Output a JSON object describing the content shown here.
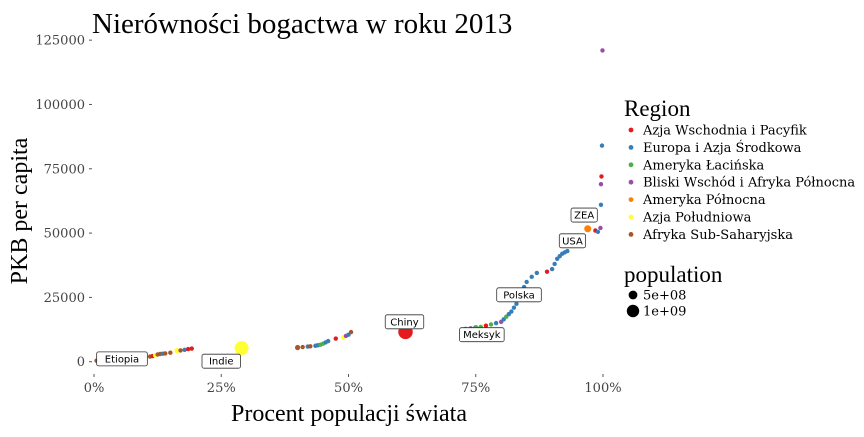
{
  "chart_data": {
    "type": "scatter",
    "title": "Nierówności bogactwa w roku 2013",
    "xlabel": "Procent populacji świata",
    "ylabel": "PKB per capita",
    "xlim": [
      0,
      1
    ],
    "ylim": [
      -4000,
      127000
    ],
    "x_ticks": [
      {
        "value": 0,
        "label": "0%"
      },
      {
        "value": 0.25,
        "label": "25%"
      },
      {
        "value": 0.5,
        "label": "50%"
      },
      {
        "value": 0.75,
        "label": "75%"
      },
      {
        "value": 1,
        "label": "100%"
      }
    ],
    "y_ticks": [
      {
        "value": 0,
        "label": "0"
      },
      {
        "value": 25000,
        "label": "25000"
      },
      {
        "value": 50000,
        "label": "50000"
      },
      {
        "value": 75000,
        "label": "75000"
      },
      {
        "value": 100000,
        "label": "100000"
      },
      {
        "value": 125000,
        "label": "125000"
      }
    ],
    "grid": false,
    "legend": {
      "title": "Region",
      "placement": "right",
      "entries": [
        {
          "name": "Azja Wschodnia i Pacyfik",
          "color": "#e41a1c"
        },
        {
          "name": "Europa i Azja Środkowa",
          "color": "#377eb8"
        },
        {
          "name": "Ameryka Łacińska",
          "color": "#4daf4a"
        },
        {
          "name": "Bliski Wschód i Afryka Północna",
          "color": "#984ea3"
        },
        {
          "name": "Ameryka Północna",
          "color": "#ff7f00"
        },
        {
          "name": "Azja Południowa",
          "color": "#ffff33"
        },
        {
          "name": "Afryka Sub-Saharyjska",
          "color": "#a65628"
        }
      ]
    },
    "size_legend": {
      "title": "population",
      "entries": [
        {
          "label": "5e+08",
          "value": 500000000
        },
        {
          "label": "1e+09",
          "value": 1000000000
        }
      ]
    },
    "points": [
      {
        "x": 0.005,
        "y": 400,
        "region": 6,
        "pop": 20000000
      },
      {
        "x": 0.01,
        "y": 500,
        "region": 6,
        "pop": 25000000
      },
      {
        "x": 0.015,
        "y": 600,
        "region": 6,
        "pop": 30000000
      },
      {
        "x": 0.02,
        "y": 700,
        "region": 6,
        "pop": 20000000
      },
      {
        "x": 0.025,
        "y": 800,
        "region": 6,
        "pop": 25000000
      },
      {
        "x": 0.03,
        "y": 900,
        "region": 6,
        "pop": 30000000
      },
      {
        "x": 0.035,
        "y": 1000,
        "region": 6,
        "pop": 20000000
      },
      {
        "x": 0.04,
        "y": 1050,
        "region": 6,
        "pop": 25000000
      },
      {
        "x": 0.05,
        "y": 1100,
        "region": 6,
        "pop": 90000000
      },
      {
        "x": 0.06,
        "y": 1200,
        "region": 6,
        "pop": 30000000
      },
      {
        "x": 0.07,
        "y": 1300,
        "region": 6,
        "pop": 20000000
      },
      {
        "x": 0.08,
        "y": 1400,
        "region": 6,
        "pop": 30000000
      },
      {
        "x": 0.09,
        "y": 1600,
        "region": 6,
        "pop": 30000000
      },
      {
        "x": 0.1,
        "y": 1800,
        "region": 6,
        "pop": 40000000
      },
      {
        "x": 0.11,
        "y": 2000,
        "region": 6,
        "pop": 30000000
      },
      {
        "x": 0.115,
        "y": 2200,
        "region": 0,
        "pop": 20000000
      },
      {
        "x": 0.12,
        "y": 2500,
        "region": 5,
        "pop": 25000000
      },
      {
        "x": 0.125,
        "y": 2800,
        "region": 6,
        "pop": 40000000
      },
      {
        "x": 0.13,
        "y": 3000,
        "region": 6,
        "pop": 30000000
      },
      {
        "x": 0.135,
        "y": 3100,
        "region": 1,
        "pop": 20000000
      },
      {
        "x": 0.14,
        "y": 3200,
        "region": 6,
        "pop": 30000000
      },
      {
        "x": 0.15,
        "y": 3500,
        "region": 6,
        "pop": 30000000
      },
      {
        "x": 0.163,
        "y": 4300,
        "region": 5,
        "pop": 180000000
      },
      {
        "x": 0.17,
        "y": 4400,
        "region": 6,
        "pop": 30000000
      },
      {
        "x": 0.178,
        "y": 4600,
        "region": 1,
        "pop": 30000000
      },
      {
        "x": 0.185,
        "y": 4900,
        "region": 0,
        "pop": 60000000
      },
      {
        "x": 0.192,
        "y": 5100,
        "region": 0,
        "pop": 40000000
      },
      {
        "x": 0.29,
        "y": 5300,
        "region": 5,
        "pop": 1250000000
      },
      {
        "x": 0.4,
        "y": 5500,
        "region": 6,
        "pop": 180000000
      },
      {
        "x": 0.41,
        "y": 5700,
        "region": 6,
        "pop": 30000000
      },
      {
        "x": 0.42,
        "y": 5900,
        "region": 1,
        "pop": 30000000
      },
      {
        "x": 0.425,
        "y": 6000,
        "region": 6,
        "pop": 30000000
      },
      {
        "x": 0.435,
        "y": 6200,
        "region": 1,
        "pop": 40000000
      },
      {
        "x": 0.44,
        "y": 6400,
        "region": 1,
        "pop": 30000000
      },
      {
        "x": 0.445,
        "y": 6600,
        "region": 2,
        "pop": 30000000
      },
      {
        "x": 0.45,
        "y": 7000,
        "region": 2,
        "pop": 30000000
      },
      {
        "x": 0.455,
        "y": 7500,
        "region": 1,
        "pop": 40000000
      },
      {
        "x": 0.46,
        "y": 8000,
        "region": 1,
        "pop": 30000000
      },
      {
        "x": 0.475,
        "y": 9000,
        "region": 0,
        "pop": 90000000
      },
      {
        "x": 0.49,
        "y": 9500,
        "region": 5,
        "pop": 20000000
      },
      {
        "x": 0.495,
        "y": 10000,
        "region": 3,
        "pop": 30000000
      },
      {
        "x": 0.5,
        "y": 10500,
        "region": 1,
        "pop": 30000000
      },
      {
        "x": 0.505,
        "y": 11500,
        "region": 6,
        "pop": 30000000
      },
      {
        "x": 0.612,
        "y": 11600,
        "region": 0,
        "pop": 1360000000
      },
      {
        "x": 0.725,
        "y": 12500,
        "region": 2,
        "pop": 30000000
      },
      {
        "x": 0.73,
        "y": 12800,
        "region": 2,
        "pop": 40000000
      },
      {
        "x": 0.74,
        "y": 13000,
        "region": 3,
        "pop": 30000000
      },
      {
        "x": 0.75,
        "y": 13200,
        "region": 2,
        "pop": 200000000
      },
      {
        "x": 0.76,
        "y": 13500,
        "region": 2,
        "pop": 30000000
      },
      {
        "x": 0.77,
        "y": 14000,
        "region": 0,
        "pop": 120000000
      },
      {
        "x": 0.78,
        "y": 14500,
        "region": 2,
        "pop": 40000000
      },
      {
        "x": 0.79,
        "y": 15000,
        "region": 1,
        "pop": 30000000
      },
      {
        "x": 0.8,
        "y": 15500,
        "region": 3,
        "pop": 30000000
      },
      {
        "x": 0.805,
        "y": 16500,
        "region": 1,
        "pop": 30000000
      },
      {
        "x": 0.81,
        "y": 17500,
        "region": 2,
        "pop": 30000000
      },
      {
        "x": 0.815,
        "y": 18500,
        "region": 1,
        "pop": 30000000
      },
      {
        "x": 0.82,
        "y": 19500,
        "region": 1,
        "pop": 30000000
      },
      {
        "x": 0.825,
        "y": 21000,
        "region": 1,
        "pop": 30000000
      },
      {
        "x": 0.83,
        "y": 22500,
        "region": 1,
        "pop": 30000000
      },
      {
        "x": 0.835,
        "y": 24000,
        "region": 1,
        "pop": 40000000
      },
      {
        "x": 0.84,
        "y": 26000,
        "region": 1,
        "pop": 30000000
      },
      {
        "x": 0.845,
        "y": 29000,
        "region": 1,
        "pop": 30000000
      },
      {
        "x": 0.85,
        "y": 31000,
        "region": 1,
        "pop": 30000000
      },
      {
        "x": 0.86,
        "y": 33000,
        "region": 1,
        "pop": 30000000
      },
      {
        "x": 0.87,
        "y": 34500,
        "region": 1,
        "pop": 30000000
      },
      {
        "x": 0.89,
        "y": 35000,
        "region": 0,
        "pop": 40000000
      },
      {
        "x": 0.9,
        "y": 36000,
        "region": 1,
        "pop": 30000000
      },
      {
        "x": 0.905,
        "y": 38000,
        "region": 1,
        "pop": 30000000
      },
      {
        "x": 0.91,
        "y": 40000,
        "region": 1,
        "pop": 40000000
      },
      {
        "x": 0.915,
        "y": 41000,
        "region": 1,
        "pop": 30000000
      },
      {
        "x": 0.92,
        "y": 42000,
        "region": 1,
        "pop": 30000000
      },
      {
        "x": 0.925,
        "y": 42500,
        "region": 1,
        "pop": 30000000
      },
      {
        "x": 0.93,
        "y": 43000,
        "region": 1,
        "pop": 30000000
      },
      {
        "x": 0.97,
        "y": 51700,
        "region": 4,
        "pop": 320000000
      },
      {
        "x": 0.985,
        "y": 51000,
        "region": 0,
        "pop": 20000000
      },
      {
        "x": 0.99,
        "y": 50500,
        "region": 1,
        "pop": 20000000
      },
      {
        "x": 0.995,
        "y": 52000,
        "region": 3,
        "pop": 20000000
      },
      {
        "x": 0.996,
        "y": 61000,
        "region": 1,
        "pop": 20000000
      },
      {
        "x": 0.996,
        "y": 69000,
        "region": 3,
        "pop": 20000000
      },
      {
        "x": 0.997,
        "y": 72000,
        "region": 0,
        "pop": 20000000
      },
      {
        "x": 0.998,
        "y": 84000,
        "region": 1,
        "pop": 20000000
      },
      {
        "x": 0.999,
        "y": 121000,
        "region": 3,
        "pop": 20000000
      }
    ],
    "annotations": [
      {
        "label": "Etiopia",
        "x": 0.055,
        "y": 1100
      },
      {
        "label": "Indie",
        "x": 0.25,
        "y": 200
      },
      {
        "label": "Chiny",
        "x": 0.61,
        "y": 15500
      },
      {
        "label": "Meksyk",
        "x": 0.762,
        "y": 10500
      },
      {
        "label": "Polska",
        "x": 0.835,
        "y": 26000
      },
      {
        "label": "USA",
        "x": 0.94,
        "y": 47000
      },
      {
        "label": "ZEA",
        "x": 0.963,
        "y": 57000
      }
    ]
  }
}
